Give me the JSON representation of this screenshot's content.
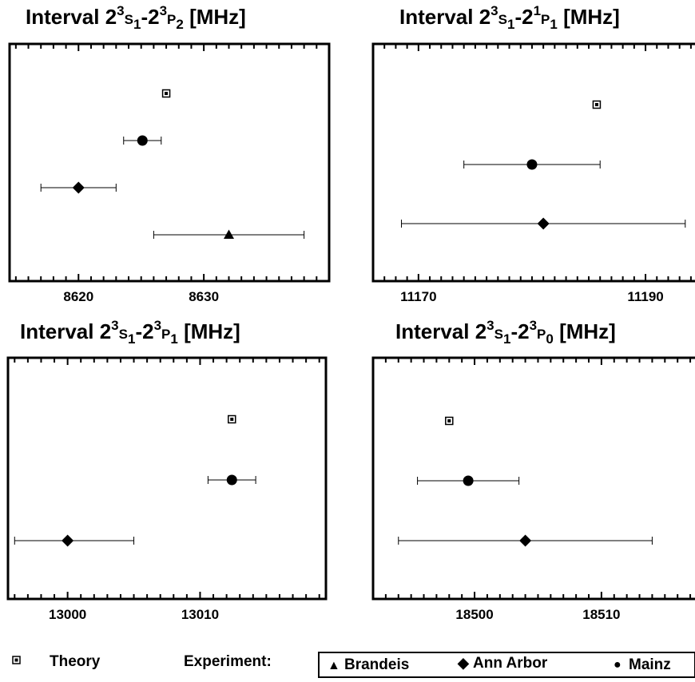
{
  "chart_data": [
    {
      "type": "scatter",
      "title_parts": {
        "pre": "Interval 2",
        "s1": "3",
        "mid1": "S",
        "s2": "1",
        "dash": "-2",
        "s3": "3",
        "mid2": "P",
        "s4": "2",
        "post": " [MHz]"
      },
      "xlim": [
        8614.5,
        8640
      ],
      "xticks": [
        8620,
        8630
      ],
      "xtick_labels": [
        "8620",
        "8630"
      ],
      "points": [
        {
          "series": "Theory",
          "y": 1,
          "x": 8627.0,
          "xerr": null
        },
        {
          "series": "Mainz",
          "y": 2,
          "x": 8625.1,
          "xerr": [
            8623.6,
            8626.6
          ]
        },
        {
          "series": "Ann Arbor",
          "y": 3,
          "x": 8620.0,
          "xerr": [
            8617.0,
            8623.0
          ]
        },
        {
          "series": "Brandeis",
          "y": 4,
          "x": 8632.0,
          "xerr": [
            8626.0,
            8638.0
          ]
        }
      ]
    },
    {
      "type": "scatter",
      "title_parts": {
        "pre": "Interval 2",
        "s1": "3",
        "mid1": "S",
        "s2": "1",
        "dash": "-2",
        "s3": "1",
        "mid2": "P",
        "s4": "1",
        "post": " [MHz]"
      },
      "xlim": [
        11166,
        11194.5
      ],
      "xticks": [
        11170,
        11190
      ],
      "xtick_labels": [
        "11170",
        "11190"
      ],
      "points": [
        {
          "series": "Theory",
          "y": 1,
          "x": 11185.7,
          "xerr": null
        },
        {
          "series": "Mainz",
          "y": 2,
          "x": 11180.0,
          "xerr": [
            11174.0,
            11186.0
          ]
        },
        {
          "series": "Ann Arbor",
          "y": 3,
          "x": 11181.0,
          "xerr": [
            11168.5,
            11193.5
          ]
        }
      ]
    },
    {
      "type": "scatter",
      "title_parts": {
        "pre": "Interval 2",
        "s1": "3",
        "mid1": "S",
        "s2": "1",
        "dash": "-2",
        "s3": "3",
        "mid2": "P",
        "s4": "1",
        "post": " [MHz]"
      },
      "xlim": [
        12995.5,
        13019.5
      ],
      "xticks": [
        13000,
        13010
      ],
      "xtick_labels": [
        "13000",
        "13010"
      ],
      "points": [
        {
          "series": "Theory",
          "y": 1,
          "x": 13012.4,
          "xerr": null
        },
        {
          "series": "Mainz",
          "y": 2,
          "x": 13012.4,
          "xerr": [
            13010.6,
            13014.2
          ]
        },
        {
          "series": "Ann Arbor",
          "y": 3,
          "x": 13000.0,
          "xerr": [
            12996.0,
            13005.0
          ]
        }
      ]
    },
    {
      "type": "scatter",
      "title_parts": {
        "pre": "Interval 2",
        "s1": "3",
        "mid1": "S",
        "s2": "1",
        "dash": "-2",
        "s3": "3",
        "mid2": "P",
        "s4": "0",
        "post": " [MHz]"
      },
      "xlim": [
        18492,
        18517.5
      ],
      "xticks": [
        18500,
        18510
      ],
      "xtick_labels": [
        "18500",
        "18510"
      ],
      "points": [
        {
          "series": "Theory",
          "y": 1,
          "x": 18498.0,
          "xerr": null
        },
        {
          "series": "Mainz",
          "y": 2,
          "x": 18499.5,
          "xerr": [
            18495.5,
            18503.5
          ]
        },
        {
          "series": "Ann Arbor",
          "y": 3,
          "x": 18504.0,
          "xerr": [
            18494.0,
            18514.0
          ]
        }
      ]
    }
  ],
  "legend": {
    "theory": "Theory",
    "experiment": "Experiment:",
    "brandeis": "Brandeis",
    "ann_arbor": "Ann Arbor",
    "mainz": "Mainz"
  },
  "glyphs": {
    "triangle": "▲",
    "diamond": "◆",
    "circle": "●"
  }
}
